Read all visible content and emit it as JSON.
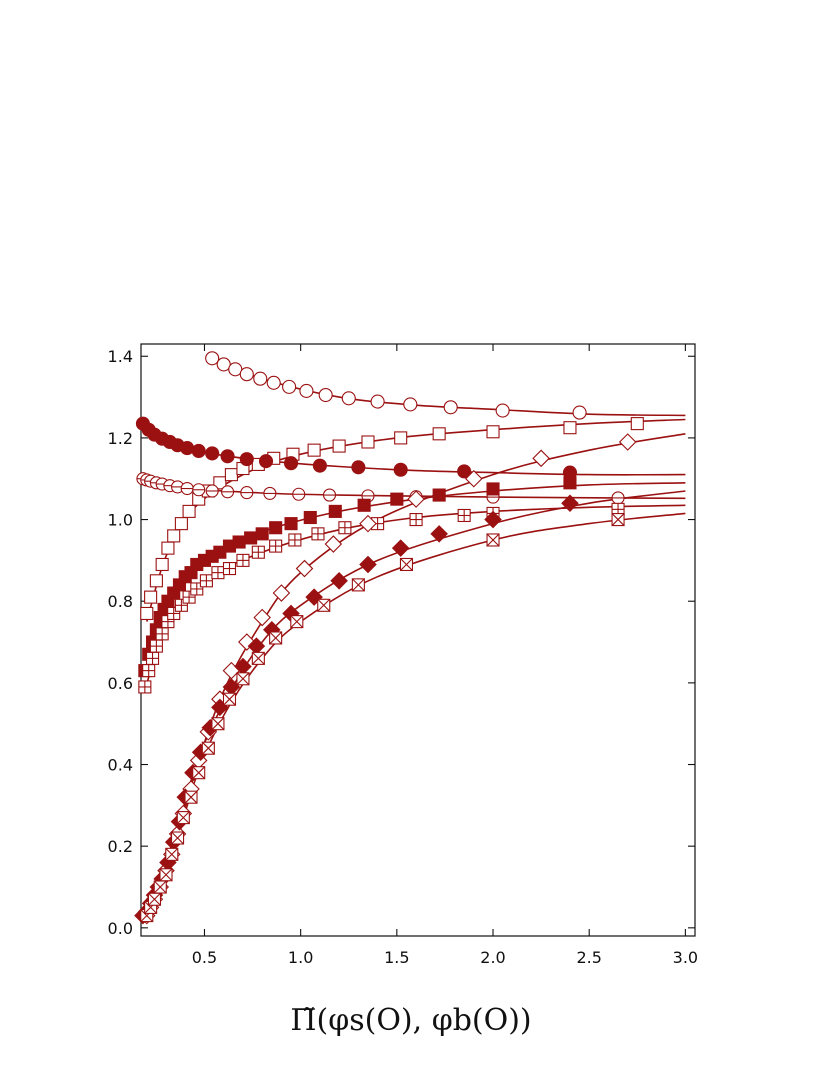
{
  "chart_data": {
    "type": "scatter",
    "xlabel": "Π̃(φs(O), φb(O))",
    "ylabel": "",
    "xlim": [
      0.17,
      3.05
    ],
    "ylim": [
      -0.02,
      1.43
    ],
    "x_ticks": [
      0.5,
      1.0,
      1.5,
      2.0,
      2.5,
      3.0
    ],
    "x_tick_labels": [
      "0.5",
      "1.0",
      "1.5",
      "2.0",
      "2.5",
      "3.0"
    ],
    "y_ticks": [
      0.0,
      0.2,
      0.4,
      0.6,
      0.8,
      1.0,
      1.2,
      1.4
    ],
    "y_tick_labels": [
      "0.0",
      "0.2",
      "0.4",
      "0.6",
      "0.8",
      "1.0",
      "1.2",
      "1.4"
    ],
    "grid": false,
    "legend": "none",
    "color": "#9b1111",
    "series": [
      {
        "marker": "open-circle",
        "x": [
          0.54,
          0.6,
          0.66,
          0.72,
          0.79,
          0.86,
          0.94,
          1.03,
          1.13,
          1.25,
          1.4,
          1.57,
          1.78,
          2.05,
          2.45
        ],
        "y": [
          1.395,
          1.38,
          1.368,
          1.356,
          1.345,
          1.335,
          1.325,
          1.315,
          1.305,
          1.297,
          1.289,
          1.282,
          1.275,
          1.267,
          1.262
        ],
        "fit": [
          [
            0.54,
            1.395
          ],
          [
            0.8,
            1.345
          ],
          [
            1.2,
            1.3
          ],
          [
            1.6,
            1.28
          ],
          [
            2.0,
            1.27
          ],
          [
            2.5,
            1.258
          ],
          [
            3.0,
            1.255
          ]
        ]
      },
      {
        "marker": "open-square",
        "x": [
          0.2,
          0.22,
          0.25,
          0.28,
          0.31,
          0.34,
          0.38,
          0.42,
          0.47,
          0.52,
          0.58,
          0.64,
          0.7,
          0.78,
          0.86,
          0.96,
          1.07,
          1.2,
          1.35,
          1.52,
          1.72,
          2.0,
          2.4,
          2.75
        ],
        "y": [
          0.77,
          0.81,
          0.85,
          0.89,
          0.93,
          0.96,
          0.99,
          1.02,
          1.05,
          1.07,
          1.09,
          1.11,
          1.125,
          1.135,
          1.15,
          1.16,
          1.17,
          1.18,
          1.19,
          1.2,
          1.21,
          1.215,
          1.225,
          1.235
        ],
        "fit": [
          [
            0.2,
            0.75
          ],
          [
            0.3,
            0.91
          ],
          [
            0.45,
            1.03
          ],
          [
            0.7,
            1.11
          ],
          [
            1.0,
            1.16
          ],
          [
            1.5,
            1.2
          ],
          [
            2.0,
            1.22
          ],
          [
            2.5,
            1.235
          ],
          [
            3.0,
            1.245
          ]
        ]
      },
      {
        "marker": "filled-circle",
        "x": [
          0.18,
          0.21,
          0.24,
          0.28,
          0.32,
          0.36,
          0.41,
          0.47,
          0.54,
          0.62,
          0.72,
          0.82,
          0.95,
          1.1,
          1.3,
          1.52,
          1.85,
          2.4
        ],
        "y": [
          1.235,
          1.22,
          1.208,
          1.198,
          1.19,
          1.182,
          1.175,
          1.168,
          1.162,
          1.155,
          1.148,
          1.143,
          1.138,
          1.132,
          1.128,
          1.122,
          1.118,
          1.115
        ],
        "fit": [
          [
            0.18,
            1.24
          ],
          [
            0.3,
            1.195
          ],
          [
            0.5,
            1.165
          ],
          [
            0.8,
            1.145
          ],
          [
            1.2,
            1.13
          ],
          [
            1.6,
            1.12
          ],
          [
            2.0,
            1.115
          ],
          [
            2.5,
            1.11
          ],
          [
            3.0,
            1.11
          ]
        ]
      },
      {
        "marker": "open-circle-small",
        "x": [
          0.18,
          0.2,
          0.22,
          0.25,
          0.28,
          0.32,
          0.36,
          0.41,
          0.47,
          0.54,
          0.62,
          0.72,
          0.84,
          0.99,
          1.15,
          1.35,
          1.6,
          2.0,
          2.65
        ],
        "y": [
          1.1,
          1.097,
          1.094,
          1.09,
          1.087,
          1.083,
          1.08,
          1.076,
          1.073,
          1.07,
          1.068,
          1.066,
          1.064,
          1.062,
          1.06,
          1.058,
          1.056,
          1.055,
          1.053
        ],
        "fit": [
          [
            0.18,
            1.105
          ],
          [
            0.4,
            1.078
          ],
          [
            0.8,
            1.065
          ],
          [
            1.2,
            1.06
          ],
          [
            2.0,
            1.055
          ],
          [
            3.0,
            1.052
          ]
        ]
      },
      {
        "marker": "filled-square",
        "x": [
          0.19,
          0.21,
          0.23,
          0.25,
          0.27,
          0.29,
          0.31,
          0.34,
          0.37,
          0.4,
          0.43,
          0.46,
          0.5,
          0.54,
          0.58,
          0.63,
          0.68,
          0.74,
          0.8,
          0.87,
          0.95,
          1.05,
          1.18,
          1.33,
          1.5,
          1.72,
          2.0,
          2.4
        ],
        "y": [
          0.63,
          0.67,
          0.7,
          0.73,
          0.76,
          0.78,
          0.8,
          0.82,
          0.84,
          0.86,
          0.87,
          0.89,
          0.9,
          0.91,
          0.92,
          0.935,
          0.945,
          0.955,
          0.965,
          0.98,
          0.99,
          1.005,
          1.02,
          1.035,
          1.05,
          1.06,
          1.075,
          1.09
        ],
        "fit": [
          [
            0.19,
            0.62
          ],
          [
            0.3,
            0.79
          ],
          [
            0.5,
            0.9
          ],
          [
            0.8,
            0.97
          ],
          [
            1.2,
            1.02
          ],
          [
            1.6,
            1.05
          ],
          [
            2.0,
            1.07
          ],
          [
            2.5,
            1.085
          ],
          [
            3.0,
            1.09
          ]
        ]
      },
      {
        "marker": "crossed-square",
        "x": [
          0.19,
          0.21,
          0.23,
          0.25,
          0.28,
          0.31,
          0.34,
          0.38,
          0.42,
          0.46,
          0.51,
          0.57,
          0.63,
          0.7,
          0.78,
          0.87,
          0.97,
          1.09,
          1.23,
          1.4,
          1.6,
          1.85,
          2.0,
          2.65
        ],
        "y": [
          0.59,
          0.63,
          0.66,
          0.69,
          0.72,
          0.75,
          0.77,
          0.79,
          0.81,
          0.83,
          0.85,
          0.87,
          0.88,
          0.9,
          0.92,
          0.935,
          0.95,
          0.965,
          0.98,
          0.99,
          1.0,
          1.01,
          1.015,
          1.025
        ],
        "fit": [
          [
            0.19,
            0.58
          ],
          [
            0.3,
            0.74
          ],
          [
            0.5,
            0.85
          ],
          [
            0.8,
            0.92
          ],
          [
            1.2,
            0.975
          ],
          [
            1.6,
            1.005
          ],
          [
            2.0,
            1.02
          ],
          [
            2.5,
            1.03
          ],
          [
            3.0,
            1.035
          ]
        ]
      },
      {
        "marker": "open-diamond",
        "x": [
          0.2,
          0.22,
          0.24,
          0.27,
          0.3,
          0.33,
          0.36,
          0.39,
          0.43,
          0.47,
          0.52,
          0.58,
          0.64,
          0.72,
          0.8,
          0.9,
          1.02,
          1.17,
          1.35,
          1.6,
          1.9,
          2.25,
          2.7
        ],
        "y": [
          0.03,
          0.05,
          0.07,
          0.1,
          0.14,
          0.18,
          0.23,
          0.28,
          0.34,
          0.41,
          0.48,
          0.56,
          0.63,
          0.7,
          0.76,
          0.82,
          0.88,
          0.94,
          0.99,
          1.05,
          1.1,
          1.15,
          1.19
        ],
        "fit": [
          [
            0.18,
            0.02
          ],
          [
            0.3,
            0.13
          ],
          [
            0.45,
            0.38
          ],
          [
            0.6,
            0.58
          ],
          [
            0.8,
            0.75
          ],
          [
            1.0,
            0.87
          ],
          [
            1.4,
            1.0
          ],
          [
            2.0,
            1.11
          ],
          [
            2.5,
            1.17
          ],
          [
            3.0,
            1.21
          ]
        ]
      },
      {
        "marker": "filled-diamond",
        "x": [
          0.18,
          0.2,
          0.22,
          0.24,
          0.26,
          0.28,
          0.31,
          0.34,
          0.37,
          0.4,
          0.44,
          0.48,
          0.53,
          0.58,
          0.64,
          0.7,
          0.77,
          0.85,
          0.95,
          1.07,
          1.2,
          1.35,
          1.52,
          1.72,
          2.0,
          2.4
        ],
        "y": [
          0.03,
          0.04,
          0.06,
          0.08,
          0.1,
          0.12,
          0.16,
          0.21,
          0.26,
          0.32,
          0.38,
          0.43,
          0.49,
          0.54,
          0.59,
          0.64,
          0.69,
          0.73,
          0.77,
          0.81,
          0.85,
          0.89,
          0.93,
          0.965,
          1.0,
          1.04
        ],
        "fit": [
          [
            0.18,
            0.025
          ],
          [
            0.3,
            0.14
          ],
          [
            0.45,
            0.39
          ],
          [
            0.6,
            0.55
          ],
          [
            0.8,
            0.7
          ],
          [
            1.0,
            0.79
          ],
          [
            1.4,
            0.9
          ],
          [
            2.0,
            0.99
          ],
          [
            2.5,
            1.04
          ],
          [
            3.0,
            1.07
          ]
        ]
      },
      {
        "marker": "boxed-x",
        "x": [
          0.2,
          0.22,
          0.24,
          0.27,
          0.3,
          0.33,
          0.36,
          0.39,
          0.43,
          0.47,
          0.52,
          0.57,
          0.63,
          0.7,
          0.78,
          0.87,
          0.98,
          1.12,
          1.3,
          1.55,
          2.0,
          2.65
        ],
        "y": [
          0.03,
          0.05,
          0.07,
          0.1,
          0.13,
          0.18,
          0.22,
          0.27,
          0.32,
          0.38,
          0.44,
          0.5,
          0.56,
          0.61,
          0.66,
          0.71,
          0.75,
          0.79,
          0.84,
          0.89,
          0.95,
          1.0
        ],
        "fit": [
          [
            0.18,
            0.02
          ],
          [
            0.3,
            0.12
          ],
          [
            0.45,
            0.36
          ],
          [
            0.6,
            0.52
          ],
          [
            0.8,
            0.66
          ],
          [
            1.0,
            0.75
          ],
          [
            1.4,
            0.86
          ],
          [
            2.0,
            0.95
          ],
          [
            2.5,
            0.99
          ],
          [
            3.0,
            1.015
          ]
        ]
      }
    ]
  }
}
